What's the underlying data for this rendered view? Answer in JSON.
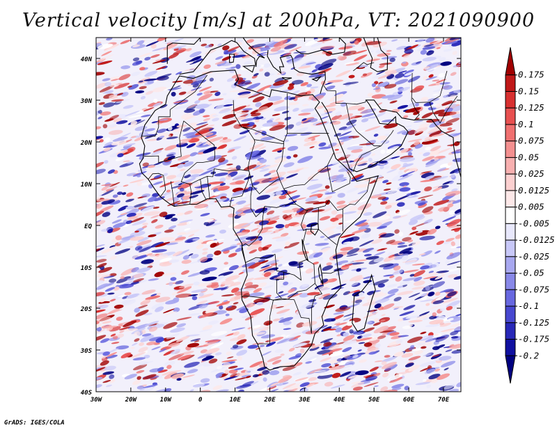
{
  "map": {
    "title": "Vertical velocity [m/s] at 200hPa, VT: 2021090900",
    "variable": "Vertical velocity",
    "units": "m/s",
    "level": "200hPa",
    "valid_time": "2021090900",
    "region": "Africa",
    "lat_labels": [
      "40N",
      "30N",
      "20N",
      "10N",
      "EQ",
      "10S",
      "20S",
      "30S",
      "40S"
    ],
    "lon_labels": [
      "30W",
      "20W",
      "10W",
      "0",
      "10E",
      "20E",
      "30E",
      "40E",
      "50E",
      "60E",
      "70E"
    ],
    "lat_range": [
      -40,
      45
    ],
    "lon_range": [
      -30,
      75
    ]
  },
  "colorbar": {
    "labels": [
      "0.175",
      "0.15",
      "0.125",
      "0.1",
      "0.075",
      "0.05",
      "0.025",
      "0.0125",
      "0.005",
      "-0.005",
      "-0.0125",
      "-0.025",
      "-0.05",
      "-0.075",
      "-0.1",
      "-0.125",
      "-0.175",
      "-0.2"
    ],
    "colors": [
      "#a00000",
      "#c01818",
      "#d83030",
      "#e85050",
      "#f07070",
      "#f49090",
      "#f8b0b0",
      "#fcd0d0",
      "#fde8e8",
      "#ffffff",
      "#e8e8fc",
      "#c8c8f8",
      "#a8a8f0",
      "#8888e8",
      "#6868e0",
      "#4848d0",
      "#2828b8",
      "#1010a0",
      "#000080"
    ]
  },
  "footer": "GrADS: IGES/COLA"
}
